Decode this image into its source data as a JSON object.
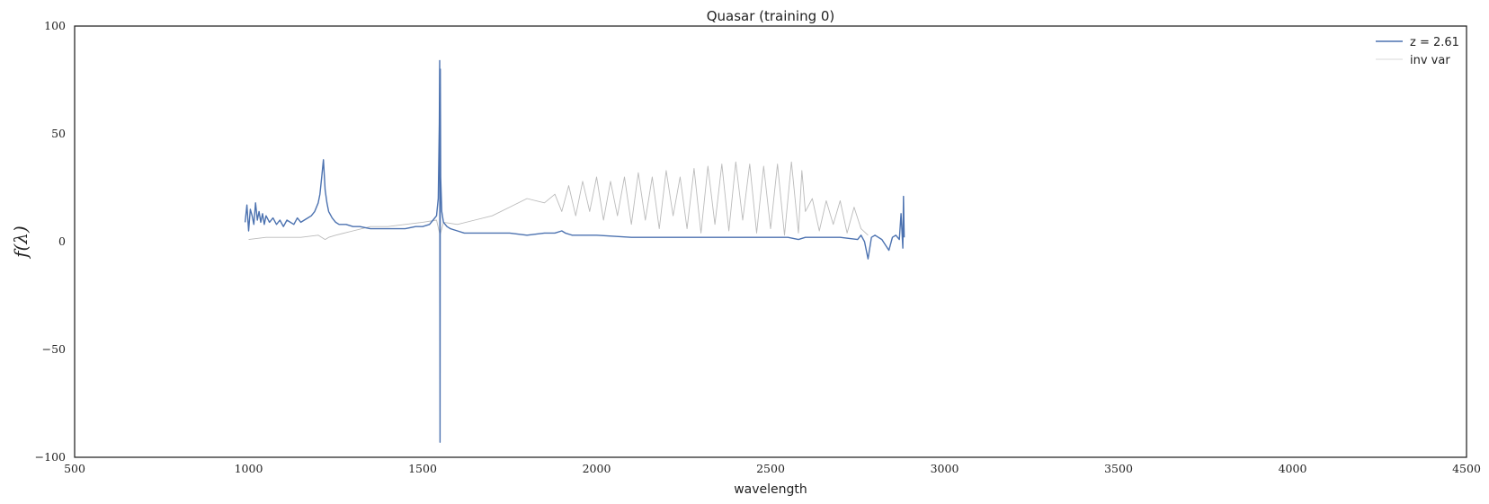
{
  "chart_data": {
    "type": "line",
    "title": "Quasar (training  0)",
    "xlabel": "wavelength",
    "ylabel": "f(λ)",
    "xlim": [
      500,
      4500
    ],
    "ylim": [
      -100,
      100
    ],
    "xticks": [
      500,
      1000,
      1500,
      2000,
      2500,
      3000,
      3500,
      4000,
      4500
    ],
    "yticks": [
      100,
      50,
      0,
      -50,
      -100
    ],
    "ytick_labels": [
      "100",
      "50",
      "0",
      "−50",
      "−100"
    ],
    "grid": false,
    "legend_position": "top-right",
    "series": [
      {
        "name": "z = 2.61",
        "color": "#4c72b0",
        "x": [
          990,
          995,
          1000,
          1005,
          1010,
          1015,
          1020,
          1025,
          1030,
          1035,
          1040,
          1045,
          1050,
          1060,
          1070,
          1080,
          1090,
          1100,
          1110,
          1120,
          1130,
          1140,
          1150,
          1160,
          1170,
          1180,
          1190,
          1200,
          1205,
          1210,
          1215,
          1220,
          1225,
          1230,
          1240,
          1250,
          1260,
          1280,
          1300,
          1320,
          1350,
          1380,
          1400,
          1420,
          1450,
          1480,
          1500,
          1520,
          1530,
          1540,
          1545,
          1548,
          1549,
          1550,
          1551,
          1552,
          1555,
          1560,
          1570,
          1580,
          1600,
          1620,
          1640,
          1660,
          1700,
          1750,
          1800,
          1850,
          1880,
          1900,
          1910,
          1930,
          1950,
          2000,
          2100,
          2200,
          2300,
          2400,
          2500,
          2550,
          2580,
          2600,
          2650,
          2700,
          2750,
          2760,
          2770,
          2780,
          2790,
          2800,
          2820,
          2840,
          2850,
          2860,
          2870,
          2875,
          2880,
          2882,
          2884
        ],
        "y": [
          9,
          17,
          5,
          15,
          12,
          8,
          18,
          10,
          14,
          9,
          13,
          8,
          12,
          9,
          11,
          8,
          10,
          7,
          10,
          9,
          8,
          11,
          9,
          10,
          11,
          12,
          14,
          18,
          22,
          30,
          38,
          24,
          18,
          14,
          11,
          9,
          8,
          8,
          7,
          7,
          6,
          6,
          6,
          6,
          6,
          7,
          7,
          8,
          10,
          12,
          20,
          55,
          84,
          -93,
          80,
          30,
          14,
          9,
          7,
          6,
          5,
          4,
          4,
          4,
          4,
          4,
          3,
          4,
          4,
          5,
          4,
          3,
          3,
          3,
          2,
          2,
          2,
          2,
          2,
          2,
          1,
          2,
          2,
          2,
          1,
          3,
          0,
          -8,
          2,
          3,
          1,
          -4,
          2,
          3,
          1,
          13,
          -3,
          21,
          2
        ]
      },
      {
        "name": "inv var",
        "color": "#bbbbbb",
        "x": [
          1000,
          1050,
          1100,
          1150,
          1200,
          1210,
          1220,
          1230,
          1250,
          1300,
          1350,
          1400,
          1450,
          1500,
          1540,
          1550,
          1560,
          1600,
          1650,
          1700,
          1750,
          1800,
          1850,
          1880,
          1900,
          1920,
          1940,
          1960,
          1980,
          2000,
          2020,
          2040,
          2060,
          2080,
          2100,
          2120,
          2140,
          2160,
          2180,
          2200,
          2220,
          2240,
          2260,
          2280,
          2300,
          2320,
          2340,
          2360,
          2380,
          2400,
          2420,
          2440,
          2460,
          2480,
          2500,
          2520,
          2540,
          2560,
          2580,
          2590,
          2600,
          2620,
          2640,
          2660,
          2680,
          2700,
          2720,
          2740,
          2760,
          2780
        ],
        "y": [
          1,
          2,
          2,
          2,
          3,
          2,
          1,
          2,
          3,
          5,
          7,
          7,
          8,
          9,
          10,
          3,
          9,
          8,
          10,
          12,
          16,
          20,
          18,
          22,
          14,
          26,
          12,
          28,
          14,
          30,
          10,
          28,
          12,
          30,
          8,
          32,
          10,
          30,
          6,
          33,
          12,
          30,
          6,
          34,
          4,
          35,
          8,
          36,
          5,
          37,
          10,
          36,
          4,
          35,
          6,
          36,
          3,
          37,
          4,
          33,
          14,
          20,
          5,
          19,
          8,
          19,
          4,
          16,
          6,
          3
        ]
      }
    ]
  }
}
